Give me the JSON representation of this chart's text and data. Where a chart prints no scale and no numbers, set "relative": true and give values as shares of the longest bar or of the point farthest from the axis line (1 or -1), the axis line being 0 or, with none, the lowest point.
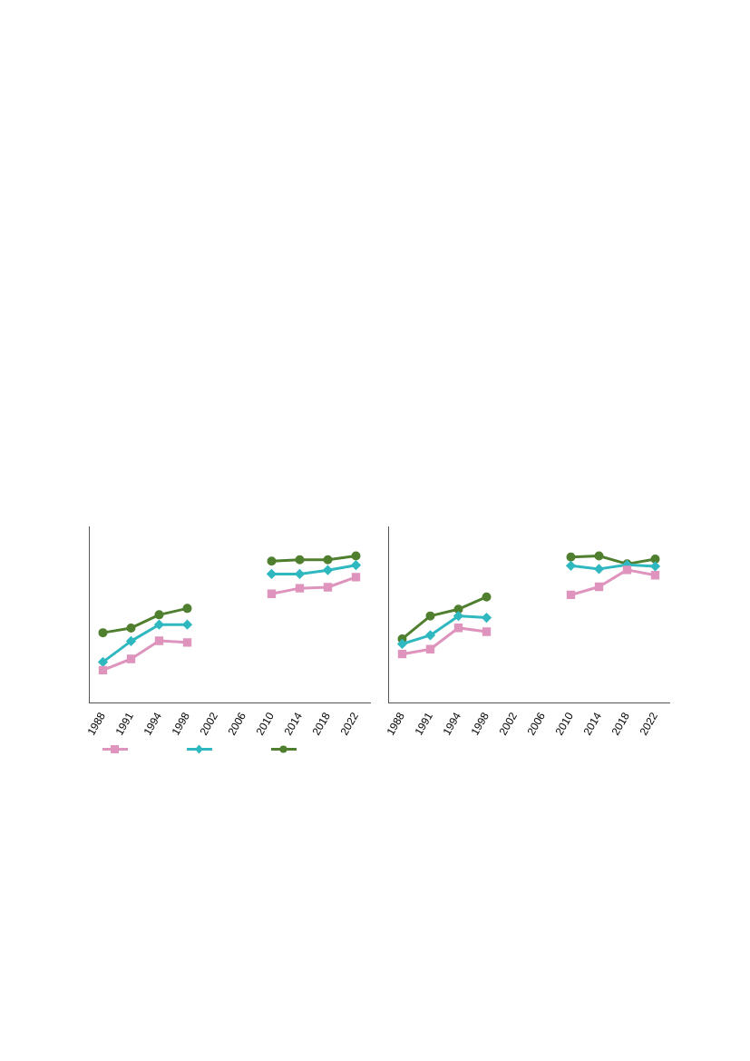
{
  "chart_data": [
    {
      "type": "line",
      "relative": true,
      "categories": [
        "1988",
        "1991",
        "1994",
        "1998",
        "2002",
        "2006",
        "2010",
        "2014",
        "2018",
        "2022"
      ],
      "grid": false,
      "series": [
        {
          "color": "#de94bd",
          "marker": "square",
          "values": [
            0.224,
            0.3,
            0.423,
            0.412,
            null,
            null,
            0.742,
            0.78,
            0.787,
            0.856
          ]
        },
        {
          "color": "#2fb8bf",
          "marker": "diamond",
          "values": [
            0.279,
            0.421,
            0.533,
            0.533,
            null,
            null,
            0.877,
            0.877,
            0.903,
            0.937
          ]
        },
        {
          "color": "#4f7f2f",
          "marker": "circle",
          "values": [
            0.478,
            0.51,
            0.6,
            0.643,
            null,
            null,
            0.964,
            0.973,
            0.973,
            1
          ]
        }
      ]
    },
    {
      "type": "line",
      "relative": true,
      "categories": [
        "1988",
        "1991",
        "1994",
        "1998",
        "2002",
        "2006",
        "2010",
        "2014",
        "2018",
        "2022"
      ],
      "grid": false,
      "series": [
        {
          "color": "#de94bd",
          "marker": "square",
          "values": [
            0.333,
            0.366,
            0.511,
            0.485,
            null,
            null,
            0.735,
            0.79,
            0.905,
            0.869
          ]
        },
        {
          "color": "#2fb8bf",
          "marker": "diamond",
          "values": [
            0.402,
            0.461,
            0.592,
            0.58,
            null,
            null,
            0.933,
            0.911,
            0.939,
            0.929
          ]
        },
        {
          "color": "#4f7f2f",
          "marker": "circle",
          "values": [
            0.436,
            0.592,
            0.638,
            0.721,
            null,
            null,
            0.992,
            1,
            0.945,
            0.978
          ]
        }
      ]
    }
  ]
}
